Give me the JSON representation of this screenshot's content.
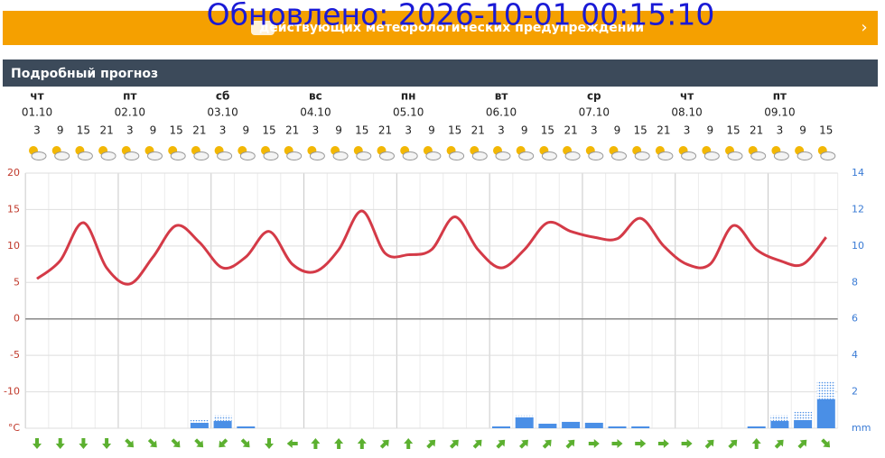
{
  "updated": "Обновлено: 2026-10-01 00:15:10",
  "banner": "действующих метеорологических предупреждений",
  "section_title": "Подробный прогноз",
  "chart_data": {
    "type": "line",
    "days": [
      {
        "weekday": "чт",
        "date": "01.10"
      },
      {
        "weekday": "пт",
        "date": "02.10"
      },
      {
        "weekday": "сб",
        "date": "03.10"
      },
      {
        "weekday": "вс",
        "date": "04.10"
      },
      {
        "weekday": "пн",
        "date": "05.10"
      },
      {
        "weekday": "вт",
        "date": "06.10"
      },
      {
        "weekday": "ср",
        "date": "07.10"
      },
      {
        "weekday": "чт",
        "date": "08.10"
      },
      {
        "weekday": "пт",
        "date": "09.10"
      }
    ],
    "categories": [
      3,
      9,
      15,
      21,
      3,
      9,
      15,
      21,
      3,
      9,
      15,
      21,
      3,
      9,
      15,
      21,
      3,
      9,
      15,
      21,
      3,
      9,
      15,
      21,
      3,
      9,
      15,
      21,
      3,
      9,
      15,
      21,
      3,
      9,
      15
    ],
    "series": [
      {
        "color": "#d43a47",
        "values": [
          5.5,
          8,
          13.2,
          7,
          4.8,
          8.5,
          12.8,
          10.5,
          7,
          8.5,
          12,
          7.5,
          6.5,
          9.5,
          14.8,
          9,
          8.8,
          9.5,
          14,
          9.5,
          7,
          9.5,
          13.2,
          12,
          11.2,
          11,
          13.8,
          10,
          7.5,
          7.5,
          12.8,
          9.5,
          8,
          7.5,
          11.2
        ]
      }
    ],
    "ylim": [
      -15,
      20
    ],
    "yticks": [
      {
        "value": -15,
        "label": "°C"
      },
      -10,
      -5,
      0,
      5,
      10,
      15,
      20
    ],
    "y2lim": [
      0,
      14
    ],
    "y2ticks": [
      {
        "value": 0,
        "label": "mm"
      },
      2,
      4,
      6,
      8,
      10,
      12,
      14
    ],
    "precipitation": {
      "axis": "y2",
      "color": "#4a8fe6",
      "values": [
        0,
        0,
        0,
        0,
        0,
        0,
        0,
        0.3,
        0.4,
        0.1,
        0,
        0,
        0,
        0,
        0,
        0,
        0,
        0,
        0,
        0,
        0.1,
        0.6,
        0.25,
        0.35,
        0.3,
        0.1,
        0.1,
        0,
        0,
        0,
        0,
        0.1,
        0.4,
        0.45,
        1.6
      ],
      "possible": [
        0,
        0,
        0,
        0,
        0,
        0,
        0,
        0.15,
        0.3,
        0,
        0,
        0,
        0,
        0,
        0,
        0,
        0,
        0,
        0,
        0,
        0,
        0.1,
        0,
        0,
        0,
        0,
        0,
        0,
        0,
        0,
        0,
        0,
        0.3,
        0.45,
        1
      ]
    },
    "wind_direction": [
      180,
      180,
      180,
      180,
      135,
      135,
      135,
      135,
      225,
      135,
      180,
      270,
      0,
      0,
      0,
      45,
      0,
      45,
      45,
      45,
      45,
      45,
      45,
      45,
      90,
      90,
      90,
      90,
      90,
      45,
      45,
      0,
      45,
      45,
      135
    ],
    "wind_color": "#5cb030",
    "grid": true
  }
}
